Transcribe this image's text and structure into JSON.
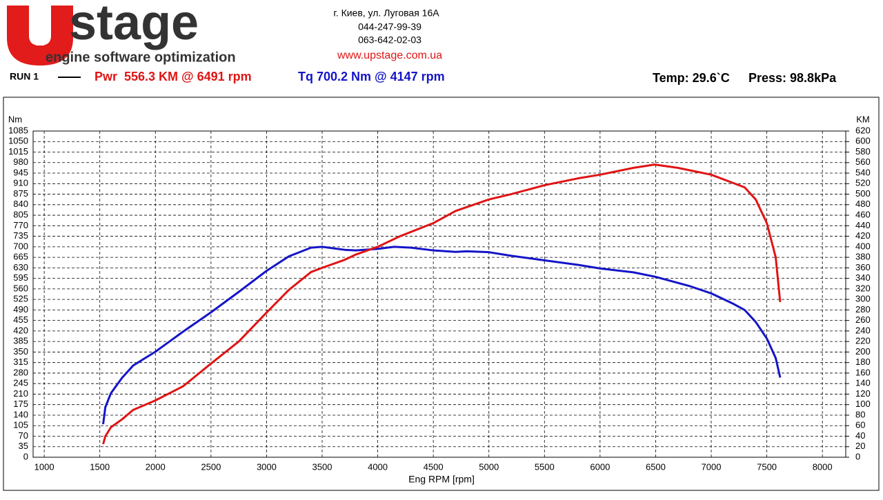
{
  "header": {
    "logo_word": "stage",
    "logo_tagline": "engine software optimization",
    "address": "г. Киев, ул. Луговая 16А",
    "phone1": "044-247-99-39",
    "phone2": "063-642-02-03",
    "website": "www.upstage.com.ua",
    "run": "RUN 1",
    "power_summary": "Pwr  556.3 KM @ 6491 rpm",
    "torque_summary": "Tq 700.2 Nm @ 4147 rpm",
    "temp": "Temp: 29.6`C",
    "press": "Press: 98.8kPa"
  },
  "chart_data": {
    "type": "line",
    "x_label": "Eng RPM [rpm]",
    "y_label": "Nm",
    "y2_label": "KM",
    "xlim": [
      900,
      8210
    ],
    "xticks": [
      1000,
      1500,
      2000,
      2500,
      3000,
      3500,
      4000,
      4500,
      5000,
      5500,
      6000,
      6500,
      7000,
      7500,
      8000
    ],
    "ylim": [
      0,
      1085
    ],
    "yticks": [
      0,
      35,
      70,
      105,
      140,
      175,
      210,
      245,
      280,
      315,
      350,
      385,
      420,
      455,
      490,
      525,
      560,
      595,
      630,
      665,
      700,
      735,
      770,
      805,
      840,
      875,
      910,
      945,
      980,
      1015,
      1050,
      1085
    ],
    "y2lim": [
      0,
      620
    ],
    "y2ticks": [
      0,
      20,
      40,
      60,
      80,
      100,
      120,
      140,
      160,
      180,
      200,
      220,
      240,
      260,
      280,
      300,
      320,
      340,
      360,
      380,
      400,
      420,
      440,
      460,
      480,
      500,
      520,
      540,
      560,
      580,
      600,
      620
    ],
    "grid": true,
    "series": [
      {
        "name": "Tq",
        "color": "#1414c8",
        "x": [
          1530,
          1550,
          1600,
          1700,
          1800,
          2000,
          2250,
          2500,
          2750,
          3000,
          3200,
          3400,
          3500,
          3700,
          3800,
          4000,
          4147,
          4300,
          4500,
          4700,
          4800,
          5000,
          5200,
          5500,
          5800,
          6000,
          6300,
          6500,
          6800,
          7000,
          7200,
          7300,
          7400,
          7500,
          7580,
          7620
        ],
        "values": [
          110,
          167,
          213,
          264,
          305,
          351,
          418,
          482,
          550,
          620,
          668,
          697,
          700,
          690,
          688,
          693,
          700,
          697,
          688,
          683,
          685,
          682,
          670,
          655,
          640,
          628,
          615,
          600,
          570,
          545,
          510,
          490,
          450,
          395,
          330,
          265
        ]
      },
      {
        "name": "Pwr",
        "color": "#e01414",
        "axis": "y2",
        "x": [
          1530,
          1550,
          1600,
          1700,
          1800,
          2000,
          2250,
          2500,
          2750,
          3000,
          3200,
          3400,
          3500,
          3700,
          3800,
          4000,
          4200,
          4500,
          4700,
          5000,
          5200,
          5500,
          5800,
          6000,
          6300,
          6491,
          6700,
          7000,
          7300,
          7400,
          7500,
          7580,
          7620
        ],
        "values": [
          25,
          40,
          57,
          72,
          90,
          108,
          135,
          178,
          220,
          275,
          318,
          352,
          360,
          375,
          385,
          400,
          420,
          445,
          468,
          490,
          500,
          517,
          530,
          537,
          550,
          556.3,
          550,
          537,
          513,
          490,
          445,
          380,
          295
        ]
      }
    ]
  }
}
